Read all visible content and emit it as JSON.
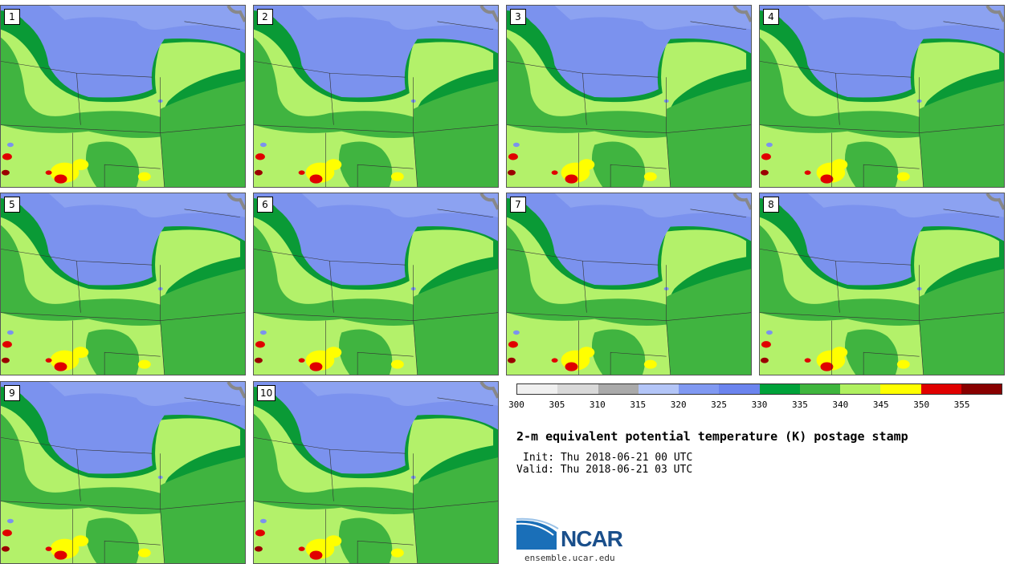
{
  "panels": [
    {
      "label": "1"
    },
    {
      "label": "2"
    },
    {
      "label": "3"
    },
    {
      "label": "4"
    },
    {
      "label": "5"
    },
    {
      "label": "6"
    },
    {
      "label": "7"
    },
    {
      "label": "8"
    },
    {
      "label": "9"
    },
    {
      "label": "10"
    }
  ],
  "colorbar": {
    "ticks": [
      "300",
      "305",
      "310",
      "315",
      "320",
      "325",
      "330",
      "335",
      "340",
      "345",
      "350",
      "355"
    ],
    "colors": [
      "#f0f0f0",
      "#d9d9d9",
      "#aaaaaa",
      "#b3c5f7",
      "#8099f2",
      "#6b84ee",
      "#00a23a",
      "#3fb53e",
      "#b0f060",
      "#ffff00",
      "#e00000",
      "#880000"
    ]
  },
  "map_colors": {
    "purple": "#7b92ee",
    "light_purple": "#9aaef4",
    "dark_green": "#0a9a36",
    "green": "#40b440",
    "light_green": "#b3f16a",
    "yellow": "#ffff00",
    "red": "#e00000",
    "dark_red": "#9a0000"
  },
  "text": {
    "title": "2-m equivalent potential temperature (K) postage stamp",
    "init": "Init: Thu 2018-06-21 00 UTC",
    "valid": "Valid: Thu 2018-06-21 03 UTC",
    "logo": "NCAR",
    "site": "ensemble.ucar.edu"
  }
}
